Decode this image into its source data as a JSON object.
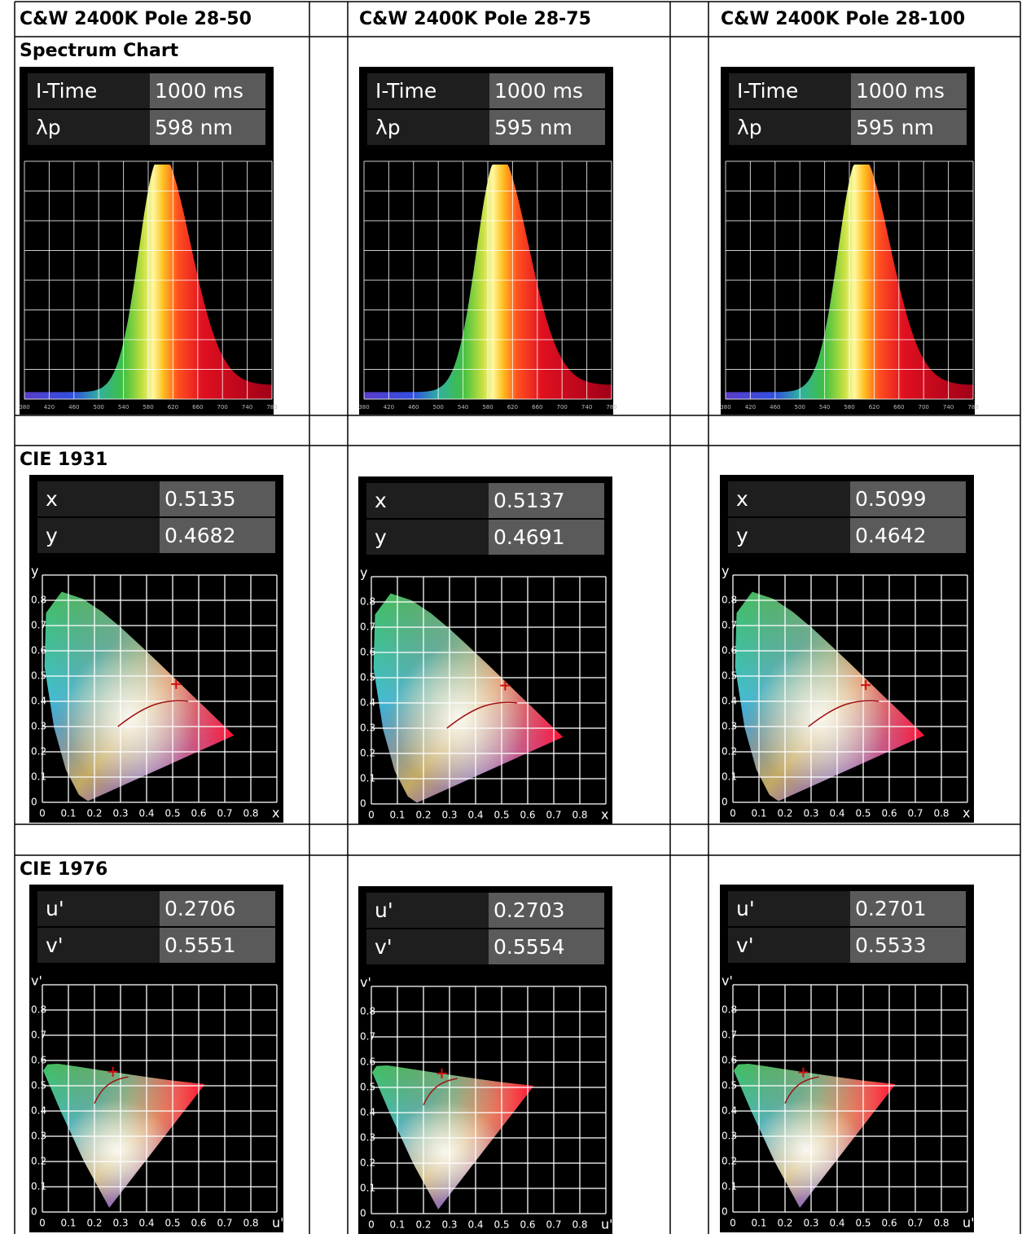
{
  "header": [
    "C&W 2400K Pole 28-50",
    "C&W 2400K Pole 28-75",
    "C&W 2400K Pole 28-100"
  ],
  "sections": [
    {
      "title": "Spectrum Chart",
      "panels": [
        {
          "rows": [
            [
              "I-Time",
              "1000 ms"
            ],
            [
              "λp",
              "598 nm"
            ]
          ]
        },
        {
          "rows": [
            [
              "I-Time",
              "1000 ms"
            ],
            [
              "λp",
              "595 nm"
            ]
          ]
        },
        {
          "rows": [
            [
              "I-Time",
              "1000 ms"
            ],
            [
              "λp",
              "595 nm"
            ]
          ]
        }
      ],
      "ticks": [
        "380",
        "420",
        "460",
        "500",
        "540",
        "580",
        "620",
        "660",
        "700",
        "740",
        "780"
      ]
    },
    {
      "title": "CIE 1931",
      "panels": [
        {
          "rows": [
            [
              "x",
              "0.5135"
            ],
            [
              "y",
              "0.4682"
            ]
          ]
        },
        {
          "rows": [
            [
              "x",
              "0.5137"
            ],
            [
              "y",
              "0.4691"
            ]
          ]
        },
        {
          "rows": [
            [
              "x",
              "0.5099"
            ],
            [
              "y",
              "0.4642"
            ]
          ]
        }
      ],
      "xaxis": "x",
      "yaxis": "y",
      "ticks": [
        "0",
        "0.1",
        "0.2",
        "0.3",
        "0.4",
        "0.5",
        "0.6",
        "0.7",
        "0.8"
      ]
    },
    {
      "title": "CIE 1976",
      "panels": [
        {
          "rows": [
            [
              "u'",
              "0.2706"
            ],
            [
              "v'",
              "0.5551"
            ]
          ]
        },
        {
          "rows": [
            [
              "u'",
              "0.2703"
            ],
            [
              "v'",
              "0.5554"
            ]
          ]
        },
        {
          "rows": [
            [
              "u'",
              "0.2701"
            ],
            [
              "v'",
              "0.5533"
            ]
          ]
        }
      ],
      "xaxis": "u'",
      "yaxis": "v'",
      "ticks": [
        "0",
        "0.1",
        "0.2",
        "0.3",
        "0.4",
        "0.5",
        "0.6",
        "0.7",
        "0.8"
      ]
    }
  ]
}
